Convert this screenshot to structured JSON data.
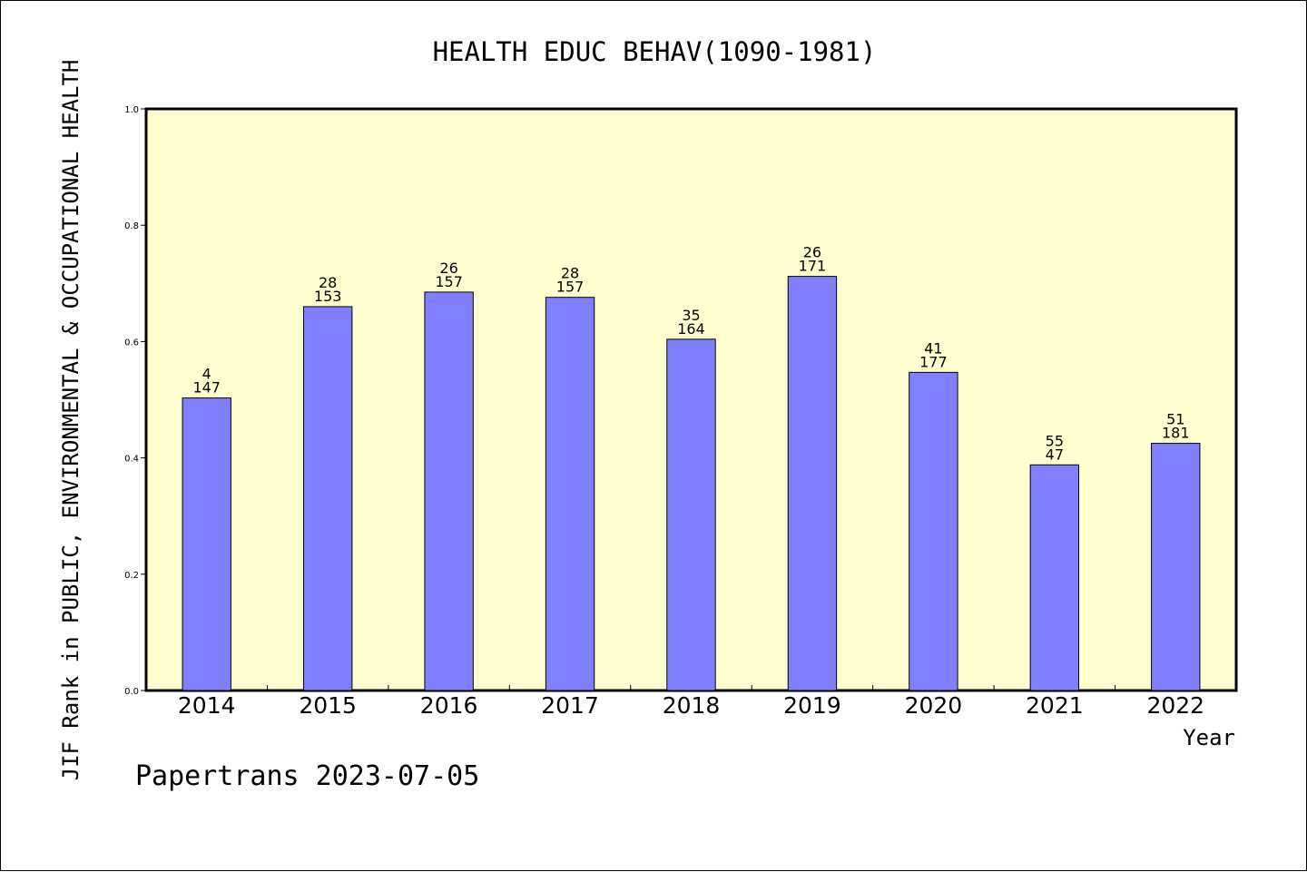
{
  "chart_data": {
    "type": "bar",
    "title": "HEALTH EDUC BEHAV(1090-1981)",
    "xlabel": "Year",
    "ylabel": "JIF Rank in PUBLIC, ENVIRONMENTAL & OCCUPATIONAL HEALTH",
    "ylim": [
      0,
      1.0
    ],
    "yticks": [
      "0.0",
      "0.2",
      "0.4",
      "0.6",
      "0.8",
      "1.0"
    ],
    "grid": false,
    "categories": [
      "2014",
      "2015",
      "2016",
      "2017",
      "2018",
      "2019",
      "2020",
      "2021",
      "2022"
    ],
    "values": [
      0.503,
      0.66,
      0.685,
      0.676,
      0.604,
      0.712,
      0.547,
      0.388,
      0.425
    ],
    "rank_labels": [
      "4",
      "28",
      "26",
      "28",
      "35",
      "26",
      "41",
      "55",
      "51"
    ],
    "total_labels": [
      "147",
      "153",
      "157",
      "157",
      "164",
      "171",
      "177",
      "47",
      "181"
    ],
    "colors": {
      "bar": "#8080ff",
      "plot_background": "#ffffd0",
      "axis": "#000000"
    }
  },
  "footer": {
    "text": "Papertrans 2023-07-05"
  }
}
